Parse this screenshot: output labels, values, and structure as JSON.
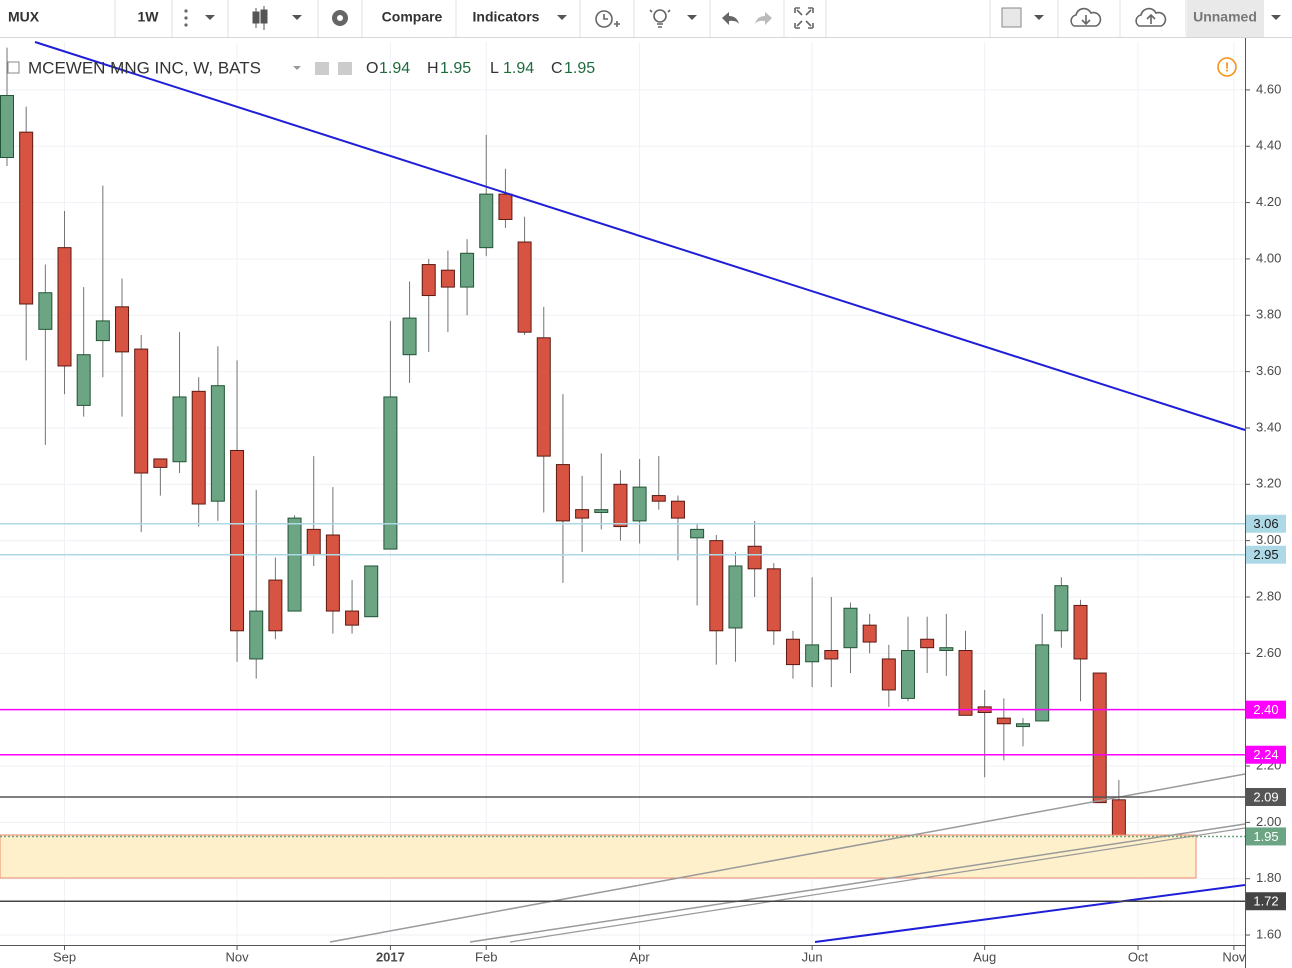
{
  "toolbar": {
    "symbol": "MUX",
    "interval": "1W",
    "compare": "Compare",
    "indicators": "Indicators",
    "layout_name": "Unnamed"
  },
  "chart_data": {
    "type": "candlestick",
    "title": "MCEWEN MNG INC, W, BATS",
    "ohlc_labels": [
      "O",
      "H",
      "L",
      "C"
    ],
    "categories": [
      null,
      null,
      null,
      "Sep",
      null,
      null,
      null,
      null,
      null,
      null,
      null,
      null,
      "Nov",
      null,
      null,
      null,
      null,
      null,
      null,
      null,
      "2017",
      null,
      null,
      null,
      null,
      "Feb",
      null,
      null,
      null,
      null,
      null,
      null,
      null,
      "Apr",
      null,
      null,
      null,
      null,
      null,
      null,
      null,
      null,
      "Jun",
      null,
      null,
      null,
      null,
      null,
      null,
      null,
      null,
      "Aug",
      null,
      null,
      null,
      null,
      null,
      null,
      null,
      "Oct",
      null,
      null,
      null,
      null,
      "Nov"
    ],
    "open": [
      4.36,
      4.45,
      3.75,
      4.04,
      3.48,
      3.71,
      3.83,
      3.68,
      3.29,
      3.28,
      3.53,
      3.14,
      3.32,
      2.58,
      2.86,
      2.75,
      3.04,
      3.02,
      2.75,
      2.73,
      2.97,
      3.66,
      3.98,
      3.96,
      3.9,
      4.04,
      4.23,
      4.06,
      3.72,
      3.27,
      3.11,
      3.1,
      3.2,
      3.07,
      3.16,
      3.14,
      3.01,
      3.0,
      2.69,
      2.98,
      2.9,
      2.65,
      2.57,
      2.61,
      2.62,
      2.7,
      2.58,
      2.44,
      2.65,
      2.61,
      2.61,
      2.41,
      2.37,
      2.34,
      2.36,
      2.68,
      2.77,
      2.53,
      2.08,
      1.94,
      null,
      null,
      null,
      null,
      null
    ],
    "high": [
      4.75,
      4.54,
      3.98,
      4.17,
      3.9,
      4.26,
      3.93,
      3.73,
      3.29,
      3.74,
      3.58,
      3.69,
      3.64,
      3.18,
      2.94,
      3.09,
      3.3,
      3.19,
      2.86,
      2.91,
      3.78,
      3.92,
      4.0,
      4.03,
      4.07,
      4.44,
      4.32,
      4.15,
      3.83,
      3.52,
      3.23,
      3.31,
      3.25,
      3.29,
      3.3,
      3.16,
      3.06,
      3.02,
      2.96,
      3.07,
      2.92,
      2.68,
      2.87,
      2.8,
      2.78,
      2.74,
      2.63,
      2.73,
      2.73,
      2.74,
      2.68,
      2.47,
      2.44,
      2.37,
      2.74,
      2.87,
      2.79,
      2.53,
      2.15,
      1.95,
      null,
      null,
      null,
      null,
      null
    ],
    "low": [
      4.33,
      3.64,
      3.34,
      3.52,
      3.44,
      3.58,
      3.44,
      3.03,
      3.16,
      3.24,
      3.05,
      3.07,
      2.57,
      2.51,
      2.65,
      2.75,
      2.91,
      2.67,
      2.67,
      2.73,
      2.97,
      3.56,
      3.67,
      3.74,
      3.8,
      4.01,
      4.11,
      3.73,
      3.1,
      2.85,
      2.96,
      3.04,
      3.0,
      2.99,
      3.11,
      2.93,
      2.77,
      2.56,
      2.57,
      2.8,
      2.63,
      2.51,
      2.48,
      2.48,
      2.53,
      2.6,
      2.41,
      2.43,
      2.53,
      2.52,
      2.38,
      2.16,
      2.22,
      2.27,
      2.36,
      2.62,
      2.43,
      2.07,
      1.95,
      1.94,
      null,
      null,
      null,
      null,
      null
    ],
    "close": [
      4.58,
      3.84,
      3.88,
      3.62,
      3.66,
      3.78,
      3.67,
      3.24,
      3.26,
      3.51,
      3.13,
      3.55,
      2.68,
      2.75,
      2.68,
      3.08,
      2.95,
      2.75,
      2.7,
      2.91,
      3.51,
      3.79,
      3.87,
      3.9,
      4.02,
      4.23,
      4.14,
      3.74,
      3.3,
      3.07,
      3.08,
      3.11,
      3.05,
      3.19,
      3.14,
      3.08,
      3.04,
      2.68,
      2.91,
      2.9,
      2.68,
      2.56,
      2.63,
      2.58,
      2.76,
      2.64,
      2.47,
      2.61,
      2.62,
      2.62,
      2.38,
      2.39,
      2.35,
      2.35,
      2.63,
      2.84,
      2.58,
      2.07,
      1.95,
      1.95,
      null,
      null,
      null,
      null,
      null
    ],
    "up_color": "#6ba583",
    "down_color": "#d75442",
    "ylim": [
      1.483,
      4.77
    ],
    "yticks": [
      {
        "value": 1.6,
        "label": "1.60"
      },
      {
        "value": 1.8,
        "label": "1.80"
      },
      {
        "value": 2.0,
        "label": "2.00"
      },
      {
        "value": 2.2,
        "label": "2.20"
      },
      {
        "value": 2.4,
        "label": "2.40"
      },
      {
        "value": 2.6,
        "label": "2.60"
      },
      {
        "value": 2.8,
        "label": "2.80"
      },
      {
        "value": 3.0,
        "label": "3.00"
      },
      {
        "value": 3.2,
        "label": "3.20"
      },
      {
        "value": 3.4,
        "label": "3.40"
      },
      {
        "value": 3.6,
        "label": "3.60"
      },
      {
        "value": 3.8,
        "label": "3.80"
      },
      {
        "value": 4.0,
        "label": "4.00"
      },
      {
        "value": 4.2,
        "label": "4.20"
      },
      {
        "value": 4.4,
        "label": "4.40"
      },
      {
        "value": 4.6,
        "label": "4.60"
      }
    ],
    "grid": true,
    "levels": [
      {
        "value": 3.06,
        "color": "#add8e6",
        "text_color": "#1a1a1a"
      },
      {
        "value": 2.95,
        "color": "#add8e6",
        "text_color": "#1a1a1a"
      },
      {
        "value": 2.4,
        "label": "2.40",
        "color": "#ff00ff",
        "text_color": "#ffffff"
      },
      {
        "value": 2.24,
        "color": "#ff00ff",
        "text_color": "#ffffff"
      },
      {
        "value": 2.09,
        "color": "#555555",
        "text_color": "#ffffff"
      },
      {
        "value": 1.95,
        "color": "#6ba583",
        "text_color": "#ffffff"
      },
      {
        "value": 1.72,
        "color": "#444444",
        "text_color": "#ffffff"
      }
    ]
  }
}
